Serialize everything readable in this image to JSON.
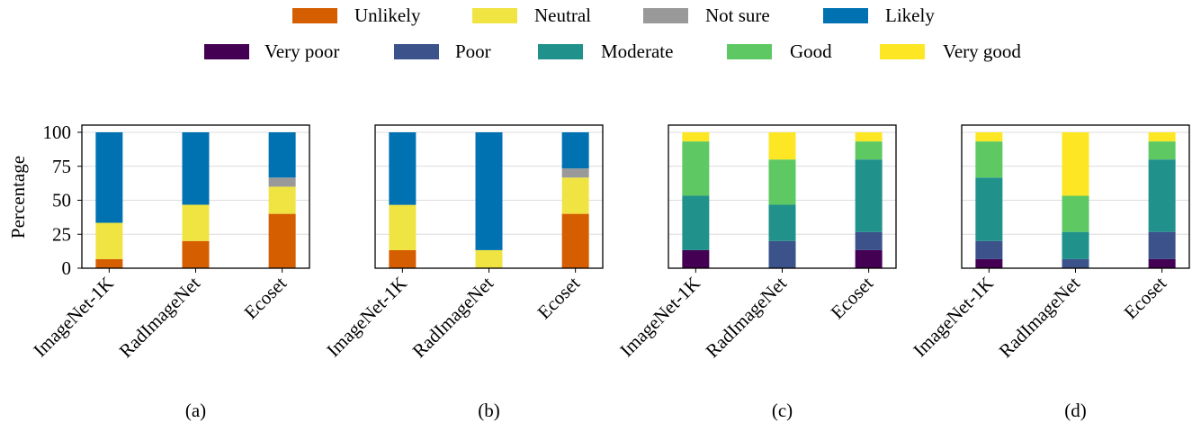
{
  "legend": {
    "likelihood": [
      {
        "label": "Unlikely",
        "color": "#d55e00"
      },
      {
        "label": "Neutral",
        "color": "#f0e442"
      },
      {
        "label": "Not sure",
        "color": "#999999"
      },
      {
        "label": "Likely",
        "color": "#0072b2"
      }
    ],
    "quality": [
      {
        "label": "Very poor",
        "color": "#440154"
      },
      {
        "label": "Poor",
        "color": "#3b528b"
      },
      {
        "label": "Moderate",
        "color": "#21918c"
      },
      {
        "label": "Good",
        "color": "#5ec962"
      },
      {
        "label": "Very good",
        "color": "#fde725"
      }
    ]
  },
  "chart_data": [
    {
      "type": "bar",
      "stacked": true,
      "caption": "(a)",
      "ylabel": "Percentage",
      "ylim": [
        0,
        100
      ],
      "yticks": [
        0,
        25,
        50,
        75,
        100
      ],
      "grid": true,
      "categories": [
        "ImageNet-1K",
        "RadImageNet",
        "Ecoset"
      ],
      "series": [
        {
          "name": "Unlikely",
          "color": "#d55e00",
          "values": [
            6.7,
            20,
            40
          ]
        },
        {
          "name": "Neutral",
          "color": "#f0e442",
          "values": [
            26.7,
            26.7,
            20
          ]
        },
        {
          "name": "Not sure",
          "color": "#999999",
          "values": [
            0,
            0,
            6.7
          ]
        },
        {
          "name": "Likely",
          "color": "#0072b2",
          "values": [
            66.6,
            53.3,
            33.3
          ]
        }
      ]
    },
    {
      "type": "bar",
      "stacked": true,
      "caption": "(b)",
      "ylim": [
        0,
        100
      ],
      "grid": true,
      "categories": [
        "ImageNet-1K",
        "RadImageNet",
        "Ecoset"
      ],
      "series": [
        {
          "name": "Unlikely",
          "color": "#d55e00",
          "values": [
            13.3,
            0,
            40
          ]
        },
        {
          "name": "Neutral",
          "color": "#f0e442",
          "values": [
            33.3,
            13.3,
            26.7
          ]
        },
        {
          "name": "Not sure",
          "color": "#999999",
          "values": [
            0,
            0,
            6.7
          ]
        },
        {
          "name": "Likely",
          "color": "#0072b2",
          "values": [
            53.4,
            86.7,
            26.6
          ]
        }
      ]
    },
    {
      "type": "bar",
      "stacked": true,
      "caption": "(c)",
      "ylim": [
        0,
        100
      ],
      "grid": true,
      "categories": [
        "ImageNet-1K",
        "RadImageNet",
        "Ecoset"
      ],
      "series": [
        {
          "name": "Very poor",
          "color": "#440154",
          "values": [
            13.3,
            0,
            13.3
          ]
        },
        {
          "name": "Poor",
          "color": "#3b528b",
          "values": [
            0,
            20,
            13.3
          ]
        },
        {
          "name": "Moderate",
          "color": "#21918c",
          "values": [
            40,
            26.7,
            53.4
          ]
        },
        {
          "name": "Good",
          "color": "#5ec962",
          "values": [
            40,
            33.3,
            13.3
          ]
        },
        {
          "name": "Very good",
          "color": "#fde725",
          "values": [
            6.7,
            20,
            6.7
          ]
        }
      ]
    },
    {
      "type": "bar",
      "stacked": true,
      "caption": "(d)",
      "ylim": [
        0,
        100
      ],
      "grid": true,
      "categories": [
        "ImageNet-1K",
        "RadImageNet",
        "Ecoset"
      ],
      "series": [
        {
          "name": "Very poor",
          "color": "#440154",
          "values": [
            6.7,
            0,
            6.7
          ]
        },
        {
          "name": "Poor",
          "color": "#3b528b",
          "values": [
            13.3,
            6.7,
            20
          ]
        },
        {
          "name": "Moderate",
          "color": "#21918c",
          "values": [
            46.7,
            20,
            53.3
          ]
        },
        {
          "name": "Good",
          "color": "#5ec962",
          "values": [
            26.6,
            26.6,
            13.3
          ]
        },
        {
          "name": "Very good",
          "color": "#fde725",
          "values": [
            6.7,
            46.7,
            6.7
          ]
        }
      ]
    }
  ]
}
